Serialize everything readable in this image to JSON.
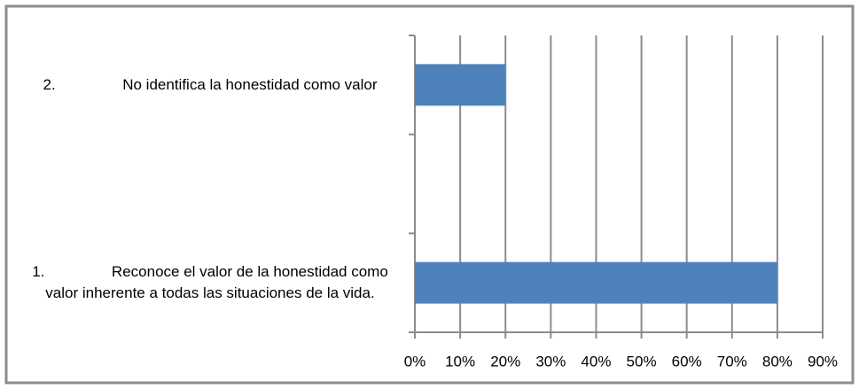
{
  "chart_data": {
    "type": "barh",
    "categories": [
      "2.                No identifica la honestidad como valor",
      null,
      "1.                Reconoce el valor de la honestidad como valor inherente a todas las situaciones de la vida."
    ],
    "values": [
      20,
      null,
      80
    ],
    "color": "#4f81bd",
    "xlim": [
      0,
      90
    ],
    "xticks": [
      {
        "value": 0,
        "label": "0%"
      },
      {
        "value": 10,
        "label": "10%"
      },
      {
        "value": 20,
        "label": "20%"
      },
      {
        "value": 30,
        "label": "30%"
      },
      {
        "value": 40,
        "label": "40%"
      },
      {
        "value": 50,
        "label": "50%"
      },
      {
        "value": 60,
        "label": "60%"
      },
      {
        "value": 70,
        "label": "70%"
      },
      {
        "value": 80,
        "label": "80%"
      },
      {
        "value": 90,
        "label": "90%"
      }
    ],
    "grid": true
  }
}
